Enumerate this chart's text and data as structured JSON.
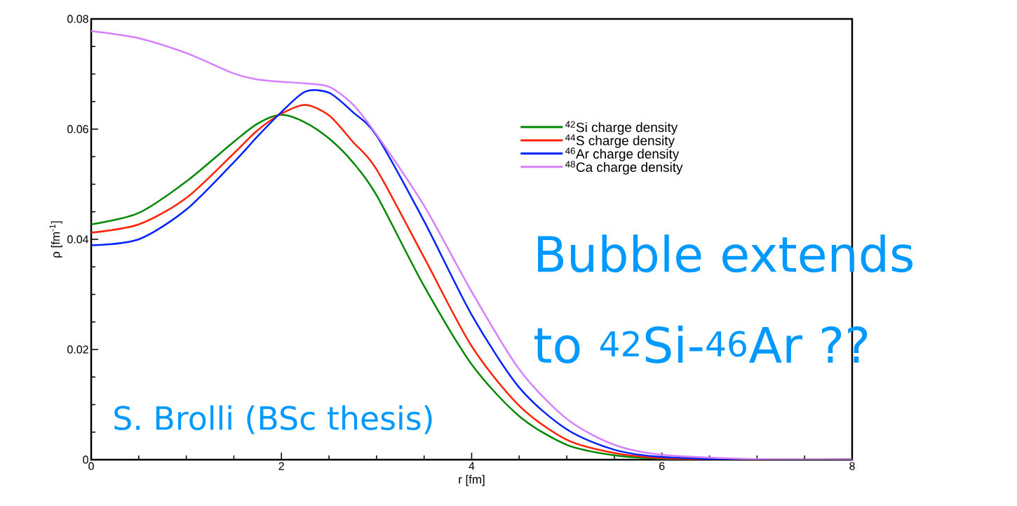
{
  "chart_data": {
    "type": "line",
    "xlabel": "r [fm]",
    "ylabel": "ρ [fm$^{-1}$]",
    "xlim": [
      0,
      8
    ],
    "ylim": [
      0,
      0.08
    ],
    "xticks": [
      0,
      2,
      4,
      6,
      8
    ],
    "yticks": [
      0,
      0.02,
      0.04,
      0.06,
      0.08
    ],
    "x": [
      0,
      0.5,
      1,
      1.5,
      1.75,
      2,
      2.25,
      2.5,
      2.75,
      3,
      3.5,
      4,
      4.5,
      5,
      5.5,
      6,
      7,
      8
    ],
    "legend": "top right",
    "series": [
      {
        "name": "$^{42}$Si charge density",
        "color": "#008800",
        "values": [
          0.0427,
          0.0448,
          0.0505,
          0.0577,
          0.061,
          0.0626,
          0.0612,
          0.0583,
          0.054,
          0.048,
          0.0315,
          0.0173,
          0.0079,
          0.0027,
          0.0008,
          0.0002,
          0,
          0
        ]
      },
      {
        "name": "$^{44}$S charge density",
        "color": "#ff2200",
        "values": [
          0.0412,
          0.0427,
          0.0475,
          0.0556,
          0.0598,
          0.0628,
          0.0644,
          0.0625,
          0.0577,
          0.0527,
          0.0367,
          0.0206,
          0.0098,
          0.0036,
          0.0012,
          0.0003,
          0,
          0
        ]
      },
      {
        "name": "$^{46}$Ar charge density",
        "color": "#0022ff",
        "values": [
          0.0389,
          0.04,
          0.0454,
          0.054,
          0.0587,
          0.0631,
          0.0668,
          0.0666,
          0.0631,
          0.0588,
          0.0433,
          0.0263,
          0.0131,
          0.0055,
          0.0018,
          0.0005,
          0,
          0
        ]
      },
      {
        "name": "$^{48}$Ca charge density",
        "color": "#d580ff",
        "values": [
          0.0778,
          0.0765,
          0.0738,
          0.0701,
          0.069,
          0.0686,
          0.0683,
          0.0677,
          0.0645,
          0.059,
          0.0461,
          0.0305,
          0.0164,
          0.0074,
          0.0027,
          0.0009,
          0.0001,
          0
        ]
      }
    ],
    "annotations": [
      "S. Brolli (BSc thesis)",
      "Bubble extends to $^{42}$Si-$^{46}$Ar ??"
    ]
  }
}
